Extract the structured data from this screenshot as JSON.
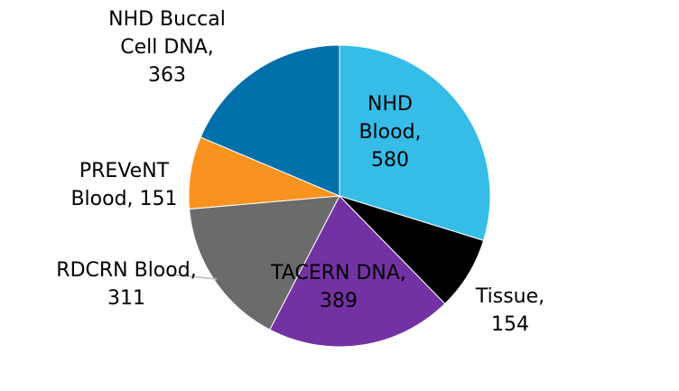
{
  "chart_data": {
    "type": "pie",
    "values": [
      580,
      154,
      389,
      311,
      151,
      363
    ],
    "value_labels": [
      "NHD Blood, 580",
      "Tissue, 154",
      "TACERN DNA, 389",
      "RDCRN Blood, 311",
      "PREVeNT Blood, 151",
      "NHD Buccal Cell DNA, 363"
    ],
    "colors": [
      "#35bde8",
      "#000000",
      "#7332a4",
      "#6b6b6b",
      "#f7931e",
      "#0070aa"
    ]
  }
}
